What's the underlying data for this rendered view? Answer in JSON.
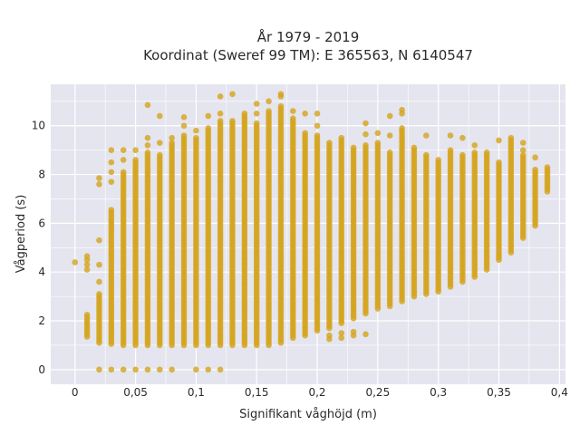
{
  "chart_data": {
    "type": "scatter",
    "title_lines": [
      "År 1979 - 2019",
      "Koordinat (Sweref 99 TM): E 365563, N 6140547"
    ],
    "xlabel": "Signifikant våghöjd (m)",
    "ylabel": "Vågperiod (s)",
    "xlim": [
      -0.02,
      0.405
    ],
    "ylim": [
      -0.6,
      11.7
    ],
    "xticks": [
      0,
      0.05,
      0.1,
      0.15,
      0.2,
      0.25,
      0.3,
      0.35,
      0.4
    ],
    "xtick_labels": [
      "0",
      "0,05",
      "0,1",
      "0,15",
      "0,2",
      "0,25",
      "0,3",
      "0,35",
      "0,4"
    ],
    "yticks": [
      0,
      2,
      4,
      6,
      8,
      10
    ],
    "ytick_labels": [
      "0",
      "2",
      "4",
      "6",
      "8",
      "10"
    ],
    "grid": true,
    "colors": {
      "marker": "#d4a41c",
      "plot_bg": "#e5e5ef",
      "grid": "#ffffff"
    },
    "series": [
      {
        "columns": [
          {
            "x": 0.0,
            "ymin": 4.4,
            "ymax": 4.4
          },
          {
            "x": 0.01,
            "ymin": 1.35,
            "ymax": 2.25,
            "extra": [
              4.1,
              4.3,
              4.5,
              4.65
            ]
          },
          {
            "x": 0.02,
            "ymin": 1.1,
            "ymax": 3.1,
            "extra": [
              0,
              3.6,
              4.3,
              5.3,
              7.6,
              7.85
            ]
          },
          {
            "x": 0.03,
            "ymin": 1.05,
            "ymax": 6.6,
            "extra": [
              0,
              7.7,
              8.1,
              8.5,
              9.0
            ]
          },
          {
            "x": 0.04,
            "ymin": 1.0,
            "ymax": 8.1,
            "extra": [
              0,
              8.6,
              9.0
            ]
          },
          {
            "x": 0.05,
            "ymin": 1.0,
            "ymax": 8.6,
            "extra": [
              0,
              9.0
            ]
          },
          {
            "x": 0.06,
            "ymin": 1.0,
            "ymax": 8.9,
            "extra": [
              0,
              9.2,
              9.5,
              10.85
            ]
          },
          {
            "x": 0.07,
            "ymin": 1.0,
            "ymax": 8.8,
            "extra": [
              0,
              9.3,
              10.4
            ]
          },
          {
            "x": 0.08,
            "ymin": 1.0,
            "ymax": 9.3,
            "extra": [
              0,
              9.5
            ]
          },
          {
            "x": 0.09,
            "ymin": 1.0,
            "ymax": 9.6,
            "extra": [
              10.0,
              10.35
            ]
          },
          {
            "x": 0.1,
            "ymin": 1.0,
            "ymax": 9.5,
            "extra": [
              0,
              9.8
            ]
          },
          {
            "x": 0.11,
            "ymin": 1.0,
            "ymax": 9.9,
            "extra": [
              0,
              10.4
            ]
          },
          {
            "x": 0.12,
            "ymin": 1.0,
            "ymax": 10.2,
            "extra": [
              0,
              10.5,
              11.2
            ]
          },
          {
            "x": 0.13,
            "ymin": 1.0,
            "ymax": 10.2,
            "extra": [
              11.3
            ]
          },
          {
            "x": 0.14,
            "ymin": 1.0,
            "ymax": 10.5
          },
          {
            "x": 0.15,
            "ymin": 1.0,
            "ymax": 10.1,
            "extra": [
              10.5,
              10.9
            ]
          },
          {
            "x": 0.16,
            "ymin": 1.0,
            "ymax": 10.6,
            "extra": [
              11.0
            ]
          },
          {
            "x": 0.17,
            "ymin": 1.1,
            "ymax": 10.8,
            "extra": [
              11.2,
              11.3
            ]
          },
          {
            "x": 0.18,
            "ymin": 1.3,
            "ymax": 10.3,
            "extra": [
              10.6
            ]
          },
          {
            "x": 0.19,
            "ymin": 1.4,
            "ymax": 9.7,
            "extra": [
              10.5
            ]
          },
          {
            "x": 0.2,
            "ymin": 1.6,
            "ymax": 9.6,
            "extra": [
              10.0,
              10.5
            ]
          },
          {
            "x": 0.21,
            "ymin": 1.7,
            "ymax": 9.3,
            "extra": [
              1.25,
              1.4
            ]
          },
          {
            "x": 0.22,
            "ymin": 1.9,
            "ymax": 9.5,
            "extra": [
              1.3,
              1.5
            ]
          },
          {
            "x": 0.23,
            "ymin": 2.1,
            "ymax": 9.1,
            "extra": [
              1.4,
              1.55
            ]
          },
          {
            "x": 0.24,
            "ymin": 2.3,
            "ymax": 9.2,
            "extra": [
              1.45,
              9.65,
              10.1
            ]
          },
          {
            "x": 0.25,
            "ymin": 2.5,
            "ymax": 9.3,
            "extra": [
              9.7
            ]
          },
          {
            "x": 0.26,
            "ymin": 2.6,
            "ymax": 8.9,
            "extra": [
              9.6,
              10.4
            ]
          },
          {
            "x": 0.27,
            "ymin": 2.8,
            "ymax": 9.9,
            "extra": [
              10.5,
              10.65
            ]
          },
          {
            "x": 0.28,
            "ymin": 3.0,
            "ymax": 9.1
          },
          {
            "x": 0.29,
            "ymin": 3.1,
            "ymax": 8.8,
            "extra": [
              9.6
            ]
          },
          {
            "x": 0.3,
            "ymin": 3.2,
            "ymax": 8.6
          },
          {
            "x": 0.31,
            "ymin": 3.4,
            "ymax": 9.0,
            "extra": [
              9.6
            ]
          },
          {
            "x": 0.32,
            "ymin": 3.6,
            "ymax": 8.8,
            "extra": [
              9.5
            ]
          },
          {
            "x": 0.33,
            "ymin": 3.8,
            "ymax": 8.9,
            "extra": [
              9.2
            ]
          },
          {
            "x": 0.34,
            "ymin": 4.1,
            "ymax": 8.9
          },
          {
            "x": 0.35,
            "ymin": 4.5,
            "ymax": 8.5,
            "extra": [
              9.4
            ]
          },
          {
            "x": 0.36,
            "ymin": 4.8,
            "ymax": 9.5
          },
          {
            "x": 0.37,
            "ymin": 5.4,
            "ymax": 8.8,
            "extra": [
              9.0,
              9.3
            ]
          },
          {
            "x": 0.38,
            "ymin": 5.9,
            "ymax": 8.2,
            "extra": [
              8.7
            ]
          },
          {
            "x": 0.39,
            "ymin": 7.3,
            "ymax": 8.3
          }
        ]
      }
    ]
  }
}
